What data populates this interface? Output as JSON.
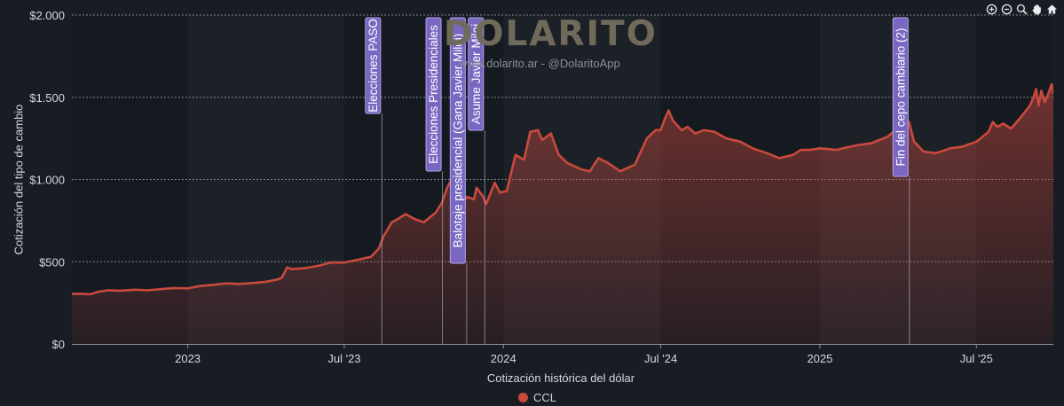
{
  "chart_data": {
    "type": "area",
    "title": "",
    "xlabel": "Cotización histórica del dólar",
    "ylabel": "Cotización del tipo de cambio",
    "ylim": [
      0,
      2000
    ],
    "xlim": [
      "2022-08-20",
      "2025-09-28"
    ],
    "y_ticks": [
      {
        "value": 0,
        "label": "$0"
      },
      {
        "value": 500,
        "label": "$500"
      },
      {
        "value": 1000,
        "label": "$1.000"
      },
      {
        "value": 1500,
        "label": "$1.500"
      },
      {
        "value": 2000,
        "label": "$2.000"
      }
    ],
    "x_ticks": [
      {
        "date": "2023-01-01",
        "label": "2023"
      },
      {
        "date": "2023-07-01",
        "label": "Jul '23"
      },
      {
        "date": "2024-01-01",
        "label": "2024"
      },
      {
        "date": "2024-07-01",
        "label": "Jul '24"
      },
      {
        "date": "2025-01-01",
        "label": "2025"
      },
      {
        "date": "2025-07-01",
        "label": "Jul '25"
      }
    ],
    "grid": true,
    "legend_position": "bottom-center",
    "series": [
      {
        "name": "CCL",
        "color": "#c94a3d",
        "points": [
          [
            "2022-08-20",
            305
          ],
          [
            "2022-09-01",
            305
          ],
          [
            "2022-09-10",
            302
          ],
          [
            "2022-09-20",
            318
          ],
          [
            "2022-10-01",
            326
          ],
          [
            "2022-10-15",
            324
          ],
          [
            "2022-11-01",
            330
          ],
          [
            "2022-11-15",
            326
          ],
          [
            "2022-12-01",
            333
          ],
          [
            "2022-12-15",
            340
          ],
          [
            "2023-01-01",
            338
          ],
          [
            "2023-01-15",
            352
          ],
          [
            "2023-02-01",
            360
          ],
          [
            "2023-02-15",
            368
          ],
          [
            "2023-03-01",
            365
          ],
          [
            "2023-03-15",
            370
          ],
          [
            "2023-04-01",
            378
          ],
          [
            "2023-04-15",
            392
          ],
          [
            "2023-04-20",
            405
          ],
          [
            "2023-04-26",
            465
          ],
          [
            "2023-05-01",
            455
          ],
          [
            "2023-05-15",
            460
          ],
          [
            "2023-06-01",
            475
          ],
          [
            "2023-06-15",
            495
          ],
          [
            "2023-07-01",
            495
          ],
          [
            "2023-07-15",
            510
          ],
          [
            "2023-08-01",
            530
          ],
          [
            "2023-08-10",
            580
          ],
          [
            "2023-08-15",
            650
          ],
          [
            "2023-08-25",
            740
          ],
          [
            "2023-09-01",
            760
          ],
          [
            "2023-09-10",
            790
          ],
          [
            "2023-09-20",
            760
          ],
          [
            "2023-10-01",
            740
          ],
          [
            "2023-10-15",
            800
          ],
          [
            "2023-10-22",
            860
          ],
          [
            "2023-10-28",
            950
          ],
          [
            "2023-11-02",
            1000
          ],
          [
            "2023-11-08",
            930
          ],
          [
            "2023-11-15",
            860
          ],
          [
            "2023-11-20",
            895
          ],
          [
            "2023-11-28",
            880
          ],
          [
            "2023-12-01",
            950
          ],
          [
            "2023-12-08",
            900
          ],
          [
            "2023-12-12",
            850
          ],
          [
            "2023-12-18",
            930
          ],
          [
            "2023-12-22",
            980
          ],
          [
            "2023-12-28",
            920
          ],
          [
            "2024-01-05",
            930
          ],
          [
            "2024-01-15",
            1150
          ],
          [
            "2024-01-25",
            1120
          ],
          [
            "2024-02-01",
            1290
          ],
          [
            "2024-02-10",
            1300
          ],
          [
            "2024-02-15",
            1240
          ],
          [
            "2024-02-25",
            1280
          ],
          [
            "2024-03-05",
            1150
          ],
          [
            "2024-03-15",
            1100
          ],
          [
            "2024-04-01",
            1060
          ],
          [
            "2024-04-10",
            1050
          ],
          [
            "2024-04-20",
            1130
          ],
          [
            "2024-05-01",
            1100
          ],
          [
            "2024-05-15",
            1050
          ],
          [
            "2024-06-01",
            1090
          ],
          [
            "2024-06-15",
            1250
          ],
          [
            "2024-06-25",
            1300
          ],
          [
            "2024-07-01",
            1300
          ],
          [
            "2024-07-05",
            1360
          ],
          [
            "2024-07-10",
            1420
          ],
          [
            "2024-07-15",
            1360
          ],
          [
            "2024-07-25",
            1300
          ],
          [
            "2024-08-01",
            1320
          ],
          [
            "2024-08-10",
            1280
          ],
          [
            "2024-08-20",
            1300
          ],
          [
            "2024-09-01",
            1290
          ],
          [
            "2024-09-15",
            1250
          ],
          [
            "2024-10-01",
            1230
          ],
          [
            "2024-10-15",
            1190
          ],
          [
            "2024-11-01",
            1160
          ],
          [
            "2024-11-15",
            1130
          ],
          [
            "2024-12-01",
            1150
          ],
          [
            "2024-12-10",
            1180
          ],
          [
            "2024-12-20",
            1180
          ],
          [
            "2025-01-01",
            1190
          ],
          [
            "2025-01-20",
            1180
          ],
          [
            "2025-02-01",
            1195
          ],
          [
            "2025-02-15",
            1210
          ],
          [
            "2025-03-01",
            1220
          ],
          [
            "2025-03-20",
            1260
          ],
          [
            "2025-04-01",
            1310
          ],
          [
            "2025-04-08",
            1280
          ],
          [
            "2025-04-14",
            1350
          ],
          [
            "2025-04-20",
            1230
          ],
          [
            "2025-05-01",
            1170
          ],
          [
            "2025-05-15",
            1160
          ],
          [
            "2025-06-01",
            1190
          ],
          [
            "2025-06-15",
            1200
          ],
          [
            "2025-07-01",
            1230
          ],
          [
            "2025-07-15",
            1290
          ],
          [
            "2025-07-20",
            1350
          ],
          [
            "2025-07-25",
            1320
          ],
          [
            "2025-08-01",
            1340
          ],
          [
            "2025-08-10",
            1310
          ],
          [
            "2025-08-20",
            1370
          ],
          [
            "2025-09-01",
            1450
          ],
          [
            "2025-09-05",
            1500
          ],
          [
            "2025-09-08",
            1550
          ],
          [
            "2025-09-11",
            1450
          ],
          [
            "2025-09-14",
            1540
          ],
          [
            "2025-09-18",
            1470
          ],
          [
            "2025-09-22",
            1520
          ],
          [
            "2025-09-26",
            1580
          ],
          [
            "2025-09-28",
            1520
          ]
        ]
      }
    ],
    "annotations": [
      {
        "date": "2023-08-13",
        "label": "Elecciones PASO"
      },
      {
        "date": "2023-10-22",
        "label": "Elecciones Presidenciales"
      },
      {
        "date": "2023-11-19",
        "label": "Balotaje presidencial (Gana Javier Milei)"
      },
      {
        "date": "2023-12-10",
        "label": "Asume Javier Milei"
      },
      {
        "date": "2025-04-14",
        "label": "Fin del cepo cambiario (2)"
      }
    ],
    "colors": {
      "background": "#181d24",
      "plot_band_dark": "#151a21",
      "plot_band_light": "#1c2128",
      "line": "#c94a3d",
      "annotation_box": "#7a67c2",
      "annotation_border": "#b4a5ec"
    }
  },
  "watermark": {
    "title": "DOLARITO",
    "subtitle": "www.dolarito.ar - @DolaritoApp"
  },
  "toolbar": {
    "icons": [
      "zoom-in-icon",
      "zoom-out-icon",
      "zoom-select-icon",
      "pan-hand-icon",
      "home-icon"
    ]
  }
}
